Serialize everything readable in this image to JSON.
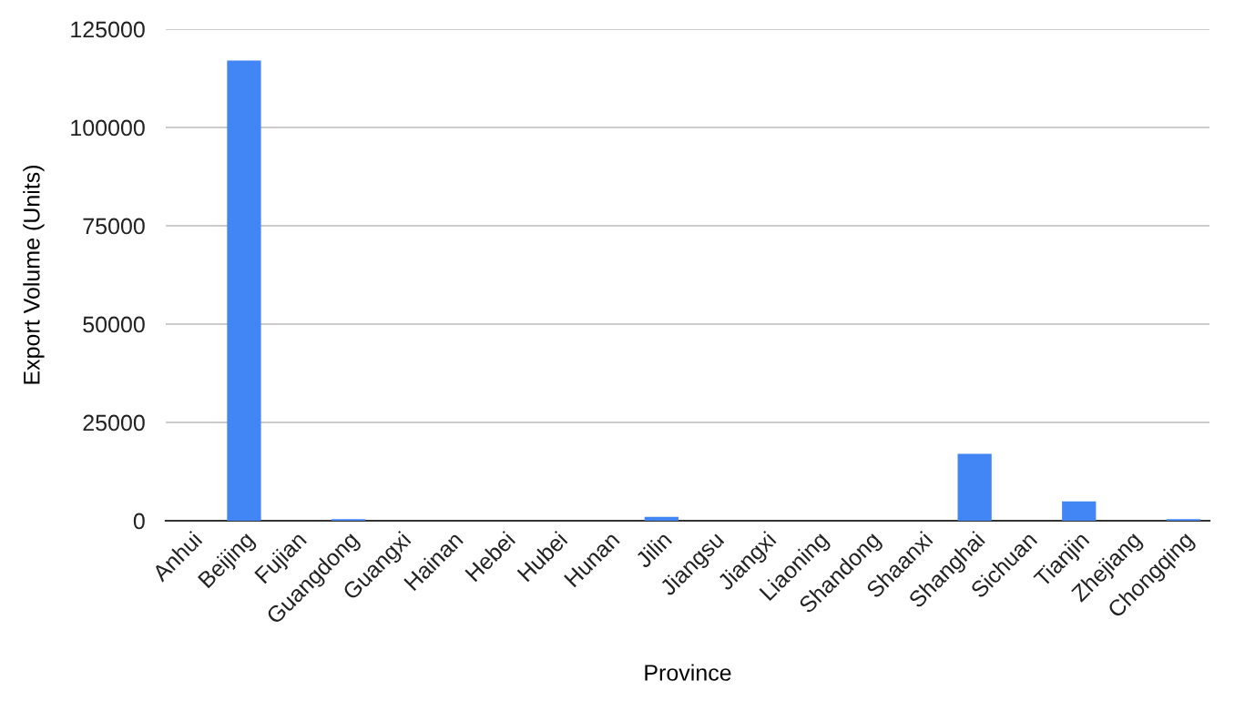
{
  "chart_data": {
    "type": "bar",
    "xlabel": "Province",
    "ylabel": "Export Volume (Units)",
    "categories": [
      "Anhui",
      "Beijing",
      "Fujian",
      "Guangdong",
      "Guangxi",
      "Hainan",
      "Hebei",
      "Hubei",
      "Hunan",
      "Jilin",
      "Jiangsu",
      "Jiangxi",
      "Liaoning",
      "Shandong",
      "Shaanxi",
      "Shanghai",
      "Sichuan",
      "Tianjin",
      "Zhejiang",
      "Chongqing"
    ],
    "values": [
      0,
      117000,
      0,
      400,
      0,
      0,
      0,
      0,
      0,
      1000,
      0,
      0,
      0,
      0,
      0,
      17000,
      0,
      4900,
      0,
      400
    ],
    "color": "#4285f4",
    "ylim": [
      0,
      125000
    ],
    "yticks": [
      0,
      25000,
      50000,
      75000,
      100000,
      125000
    ],
    "grid": "y",
    "legend": false
  }
}
